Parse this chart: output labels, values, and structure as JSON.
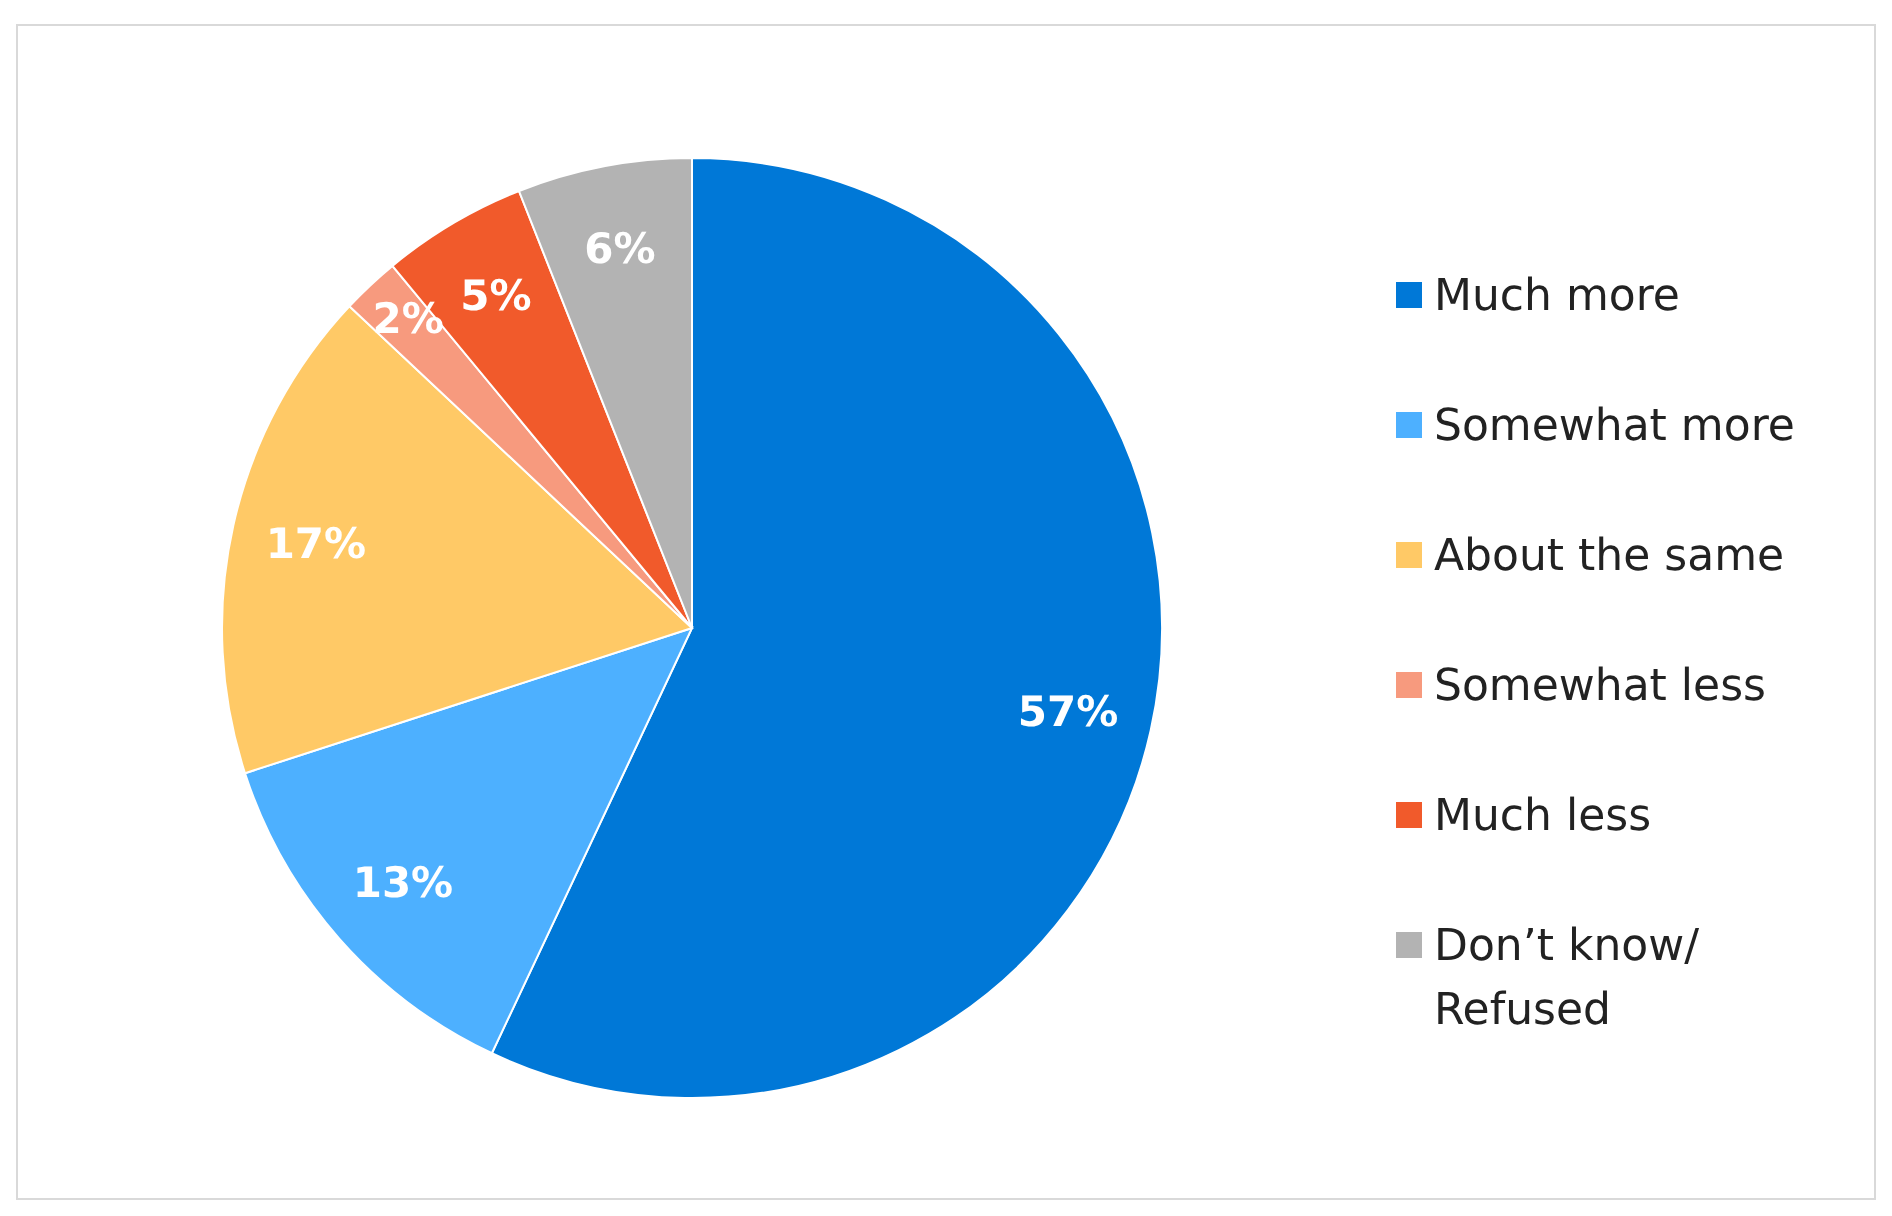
{
  "chart_data": {
    "type": "pie",
    "categories": [
      "Much more",
      "Somewhat more",
      "About the same",
      "Somewhat less",
      "Much less",
      "Don’t know/ Refused"
    ],
    "values": [
      57,
      13,
      17,
      2,
      5,
      6
    ],
    "colors": [
      "#0078d7",
      "#4db0ff",
      "#ffc966",
      "#f79a7e",
      "#f15a2b",
      "#b3b3b3"
    ],
    "value_labels": [
      "57%",
      "13%",
      "17%",
      "2%",
      "5%",
      "6%"
    ],
    "legend": "right"
  }
}
